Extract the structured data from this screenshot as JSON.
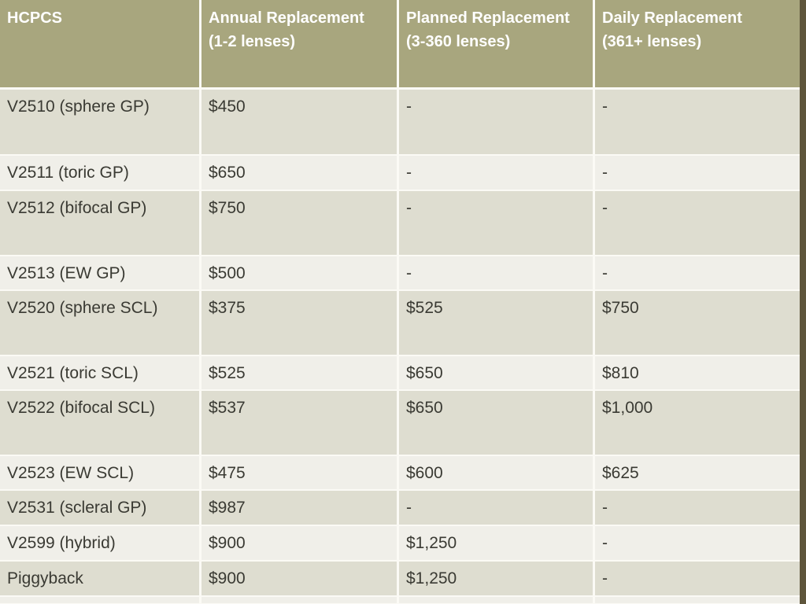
{
  "colors": {
    "header_bg": "#a8a67e",
    "row_dark": "#deddd0",
    "row_light": "#f0efe9",
    "header_text": "#ffffff",
    "body_text": "#3a3a33",
    "edge_strip": "#5e553b",
    "gap": "#fbfaf5"
  },
  "table": {
    "columns": [
      {
        "line1": "HCPCS",
        "line2": ""
      },
      {
        "line1": "Annual Replacement",
        "line2": "(1-2 lenses)"
      },
      {
        "line1": "Planned Replacement",
        "line2": "(3-360 lenses)"
      },
      {
        "line1": "Daily Replacement",
        "line2": "(361+ lenses)"
      }
    ],
    "rows": [
      {
        "hcpcs": "V2510 (sphere GP)",
        "annual": "$450",
        "planned": "-",
        "daily": "-"
      },
      {
        "hcpcs": "V2511 (toric GP)",
        "annual": "$650",
        "planned": "-",
        "daily": "-"
      },
      {
        "hcpcs": "V2512 (bifocal GP)",
        "annual": "$750",
        "planned": "-",
        "daily": "-"
      },
      {
        "hcpcs": "V2513 (EW GP)",
        "annual": "$500",
        "planned": "-",
        "daily": "-"
      },
      {
        "hcpcs": "V2520 (sphere SCL)",
        "annual": "$375",
        "planned": "$525",
        "daily": "$750"
      },
      {
        "hcpcs": "V2521 (toric SCL)",
        "annual": "$525",
        "planned": "$650",
        "daily": "$810"
      },
      {
        "hcpcs": "V2522 (bifocal SCL)",
        "annual": "$537",
        "planned": "$650",
        "daily": "$1,000"
      },
      {
        "hcpcs": "V2523 (EW SCL)",
        "annual": "$475",
        "planned": "$600",
        "daily": "$625"
      },
      {
        "hcpcs": "V2531 (scleral GP)",
        "annual": "$987",
        "planned": "-",
        "daily": "-"
      },
      {
        "hcpcs": "V2599 (hybrid)",
        "annual": "$900",
        "planned": "$1,250",
        "daily": "-"
      },
      {
        "hcpcs": "Piggyback",
        "annual": "$900",
        "planned": "$1,250",
        "daily": "-"
      }
    ]
  }
}
